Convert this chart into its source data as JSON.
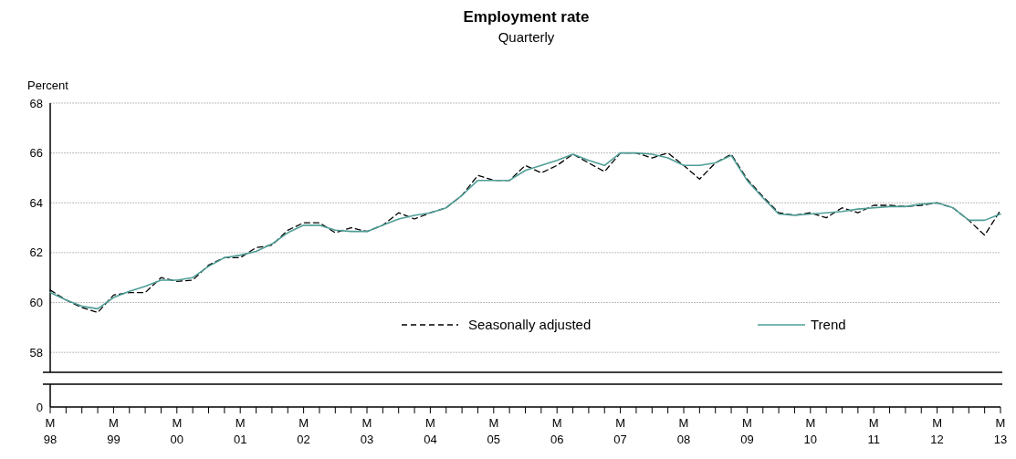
{
  "chart_data": {
    "type": "line",
    "title": "Employment rate",
    "subtitle": "Quarterly",
    "ylabel": "Percent",
    "categories": [
      "M\n98",
      null,
      null,
      null,
      "M\n99",
      null,
      null,
      null,
      "M\n00",
      null,
      null,
      null,
      "M\n01",
      null,
      null,
      null,
      "M\n02",
      null,
      null,
      null,
      "M\n03",
      null,
      null,
      null,
      "M\n04",
      null,
      null,
      null,
      "M\n05",
      null,
      null,
      null,
      "M\n06",
      null,
      null,
      null,
      "M\n07",
      null,
      null,
      null,
      "M\n08",
      null,
      null,
      null,
      "M\n09",
      null,
      null,
      null,
      "M\n10",
      null,
      null,
      null,
      "M\n11",
      null,
      null,
      null,
      "M\n12",
      null,
      null,
      null,
      "M\n13"
    ],
    "series": [
      {
        "name": "Seasonally adjusted",
        "color": "#000000",
        "line_style": "dashed",
        "values": [
          60.5,
          60.1,
          59.8,
          59.6,
          60.3,
          60.4,
          60.4,
          61.0,
          60.85,
          60.9,
          61.5,
          61.8,
          61.8,
          62.2,
          62.3,
          62.9,
          63.2,
          63.2,
          62.8,
          63.0,
          62.85,
          63.1,
          63.6,
          63.35,
          63.6,
          63.8,
          64.3,
          65.1,
          64.9,
          64.9,
          65.5,
          65.2,
          65.5,
          65.95,
          65.6,
          65.25,
          66.0,
          66.0,
          65.8,
          66.0,
          65.5,
          64.95,
          65.6,
          65.95,
          64.95,
          64.25,
          63.6,
          63.5,
          63.6,
          63.4,
          63.8,
          63.6,
          63.9,
          63.9,
          63.85,
          63.9,
          64.0,
          63.8,
          63.3,
          62.7,
          63.7
        ]
      },
      {
        "name": "Trend",
        "color": "#4f9e96",
        "line_style": "solid",
        "values": [
          60.4,
          60.1,
          59.85,
          59.75,
          60.2,
          60.45,
          60.65,
          60.9,
          60.9,
          61.0,
          61.45,
          61.8,
          61.9,
          62.05,
          62.35,
          62.8,
          63.1,
          63.1,
          62.9,
          62.85,
          62.85,
          63.1,
          63.35,
          63.5,
          63.6,
          63.8,
          64.3,
          64.9,
          64.9,
          64.9,
          65.3,
          65.5,
          65.7,
          65.95,
          65.7,
          65.5,
          66.0,
          66.0,
          65.95,
          65.8,
          65.5,
          65.5,
          65.6,
          65.9,
          64.9,
          64.2,
          63.55,
          63.5,
          63.55,
          63.6,
          63.65,
          63.75,
          63.8,
          63.85,
          63.85,
          63.95,
          64.0,
          63.8,
          63.3,
          63.3,
          63.55
        ]
      }
    ],
    "ylim": [
      57.2,
      68
    ],
    "yticks": [
      58,
      60,
      62,
      64,
      66,
      68
    ],
    "annotations": [
      "0"
    ],
    "grid": "y",
    "legend": "bottom",
    "marker": "none"
  }
}
